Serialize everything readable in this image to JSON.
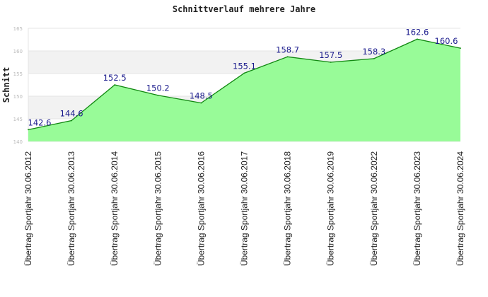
{
  "chart_data": {
    "type": "area",
    "title": "Schnittverlauf mehrere Jahre",
    "ylabel": "Schnitt",
    "xlabel": "",
    "ylim": [
      140,
      165
    ],
    "yticks": [
      140,
      145,
      150,
      155,
      160,
      165
    ],
    "categories": [
      "Übertrag Sportjahr 30.06.2012",
      "Übertrag Sportjahr 30.06.2013",
      "Übertrag Sportjahr 30.06.2014",
      "Übertrag Sportjahr 30.06.2015",
      "Übertrag Sportjahr 30.06.2016",
      "Übertrag Sportjahr 30.06.2017",
      "Übertrag Sportjahr 30.06.2018",
      "Übertrag Sportjahr 30.06.2019",
      "Übertrag Sportjahr 30.06.2022",
      "Übertrag Sportjahr 30.06.2023",
      "Übertrag Sportjahr 30.06.2024"
    ],
    "values": [
      142.6,
      144.6,
      152.5,
      150.2,
      148.5,
      155.1,
      158.7,
      157.5,
      158.3,
      162.6,
      160.6
    ],
    "data_labels": [
      "142.6",
      "144.6",
      "152.5",
      "150.2",
      "148.5",
      "155.1",
      "158.7",
      "157.5",
      "158.3",
      "162.6",
      "160.6"
    ],
    "grid": true,
    "legend": "none",
    "colors": {
      "fill": "#98fb98",
      "line": "#118811",
      "label": "#1a1a8c",
      "band": "#f2f2f2"
    }
  }
}
